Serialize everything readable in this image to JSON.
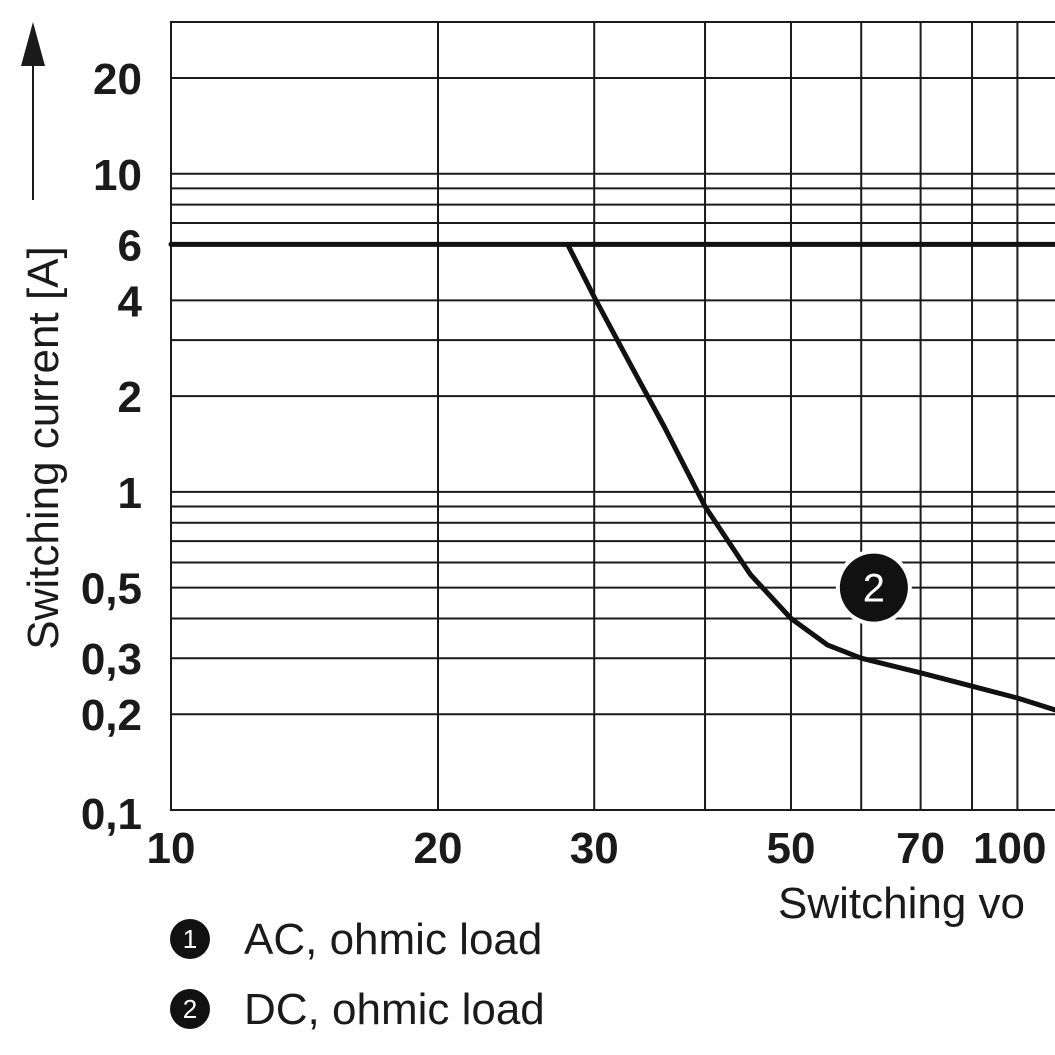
{
  "chart_data": {
    "type": "line",
    "x_scale": "log",
    "y_scale": "log",
    "xlabel": "Switching vo",
    "ylabel": "Switching current [A]",
    "xlim": [
      10,
      100
    ],
    "ylim": [
      0.1,
      30
    ],
    "x_ticks": [
      {
        "value": 10,
        "label": "10"
      },
      {
        "value": 20,
        "label": "20"
      },
      {
        "value": 30,
        "label": "30"
      },
      {
        "value": 50,
        "label": "50"
      },
      {
        "value": 70,
        "label": "70"
      },
      {
        "value": 100,
        "label": "100"
      }
    ],
    "x_grid": [
      10,
      20,
      30,
      40,
      50,
      60,
      70,
      80,
      90,
      100
    ],
    "y_ticks": [
      {
        "value": 20,
        "label": "20"
      },
      {
        "value": 10,
        "label": "10"
      },
      {
        "value": 6,
        "label": "6"
      },
      {
        "value": 4,
        "label": "4"
      },
      {
        "value": 2,
        "label": "2"
      },
      {
        "value": 1,
        "label": "1"
      },
      {
        "value": 0.5,
        "label": "0,5"
      },
      {
        "value": 0.3,
        "label": "0,3"
      },
      {
        "value": 0.2,
        "label": "0,2"
      },
      {
        "value": 0.1,
        "label": "0,1"
      }
    ],
    "y_grid": [
      20,
      10,
      9,
      8,
      7,
      6,
      4,
      3,
      2,
      1,
      0.9,
      0.8,
      0.7,
      0.6,
      0.5,
      0.4,
      0.3,
      0.2
    ],
    "series": [
      {
        "name": "AC, ohmic load",
        "marker": "1",
        "points": [
          [
            10,
            6
          ],
          [
            100,
            6
          ]
        ]
      },
      {
        "name": "DC, ohmic load",
        "marker": "2",
        "label_position": [
          62,
          0.5
        ],
        "points": [
          [
            28,
            6
          ],
          [
            30,
            4.1
          ],
          [
            33,
            2.5
          ],
          [
            36,
            1.6
          ],
          [
            40,
            0.9
          ],
          [
            45,
            0.55
          ],
          [
            50,
            0.4
          ],
          [
            55,
            0.33
          ],
          [
            60,
            0.3
          ],
          [
            70,
            0.27
          ],
          [
            80,
            0.245
          ],
          [
            90,
            0.225
          ],
          [
            100,
            0.205
          ]
        ]
      }
    ],
    "legend": [
      {
        "marker": "1",
        "label": "AC, ohmic load"
      },
      {
        "marker": "2",
        "label": "DC, ohmic load"
      }
    ],
    "legend_position": "bottom-left",
    "grid": true
  }
}
